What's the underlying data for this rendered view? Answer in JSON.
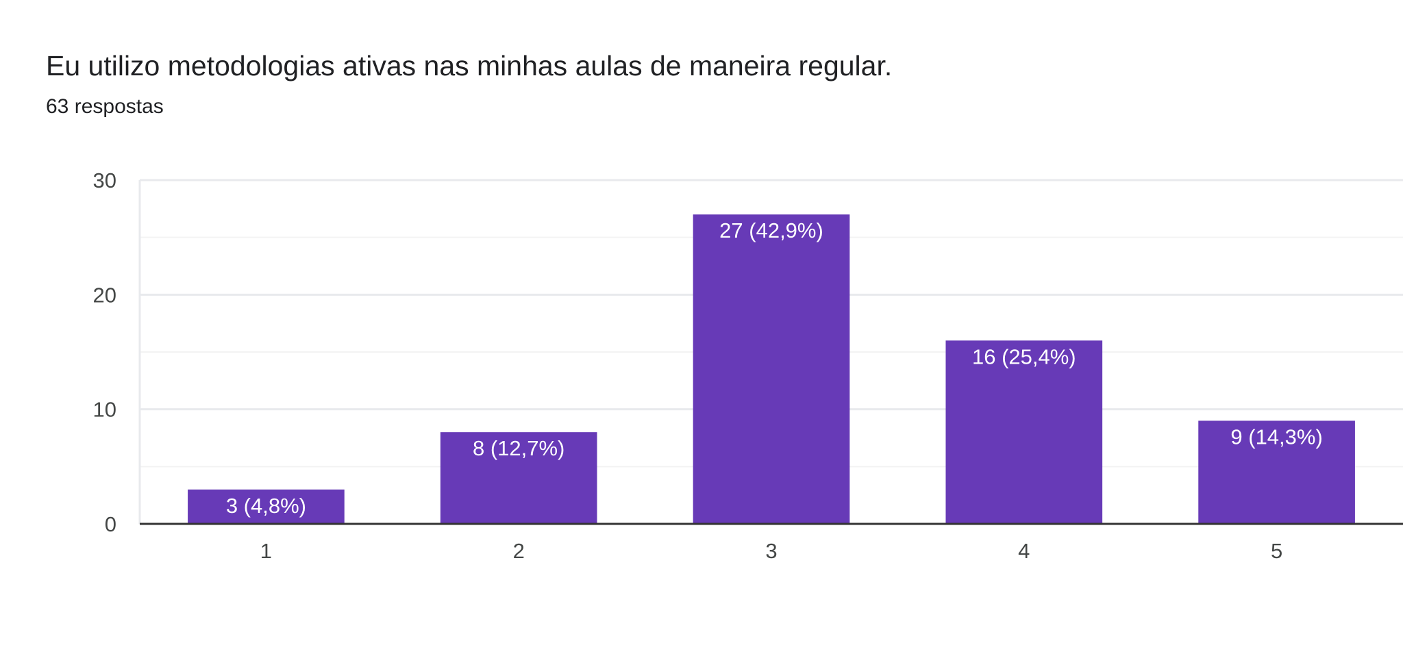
{
  "chart_data": {
    "type": "bar",
    "title": "Eu utilizo metodologias ativas nas minhas aulas de maneira regular.",
    "subtitle": "63 respostas",
    "categories": [
      "1",
      "2",
      "3",
      "4",
      "5"
    ],
    "values": [
      3,
      8,
      27,
      16,
      9
    ],
    "data_labels": [
      "3 (4,8%)",
      "8 (12,7%)",
      "27 (42,9%)",
      "16 (25,4%)",
      "9 (14,3%)"
    ],
    "y_ticks": [
      0,
      10,
      20,
      30
    ],
    "ylim": [
      0,
      30
    ],
    "xlabel": "",
    "ylabel": "",
    "grid": true,
    "legend": "none",
    "bar_color": "#673AB7"
  }
}
